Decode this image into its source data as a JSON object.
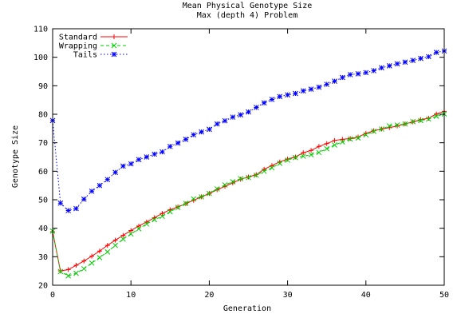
{
  "chart_data": {
    "type": "line",
    "title": "Mean Physical Genotype Size",
    "subtitle": "Max (depth 4) Problem",
    "xlabel": "Generation",
    "ylabel": "Genotype Size",
    "xlim": [
      0,
      50
    ],
    "ylim": [
      20,
      110
    ],
    "xticks": [
      "0",
      "10",
      "20",
      "30",
      "40",
      "50"
    ],
    "yticks": [
      "20",
      "30",
      "40",
      "50",
      "60",
      "70",
      "80",
      "90",
      "100",
      "110"
    ],
    "legend_position": "top-left",
    "x": [
      0,
      1,
      2,
      3,
      4,
      5,
      6,
      7,
      8,
      9,
      10,
      11,
      12,
      13,
      14,
      15,
      16,
      17,
      18,
      19,
      20,
      21,
      22,
      23,
      24,
      25,
      26,
      27,
      28,
      29,
      30,
      31,
      32,
      33,
      34,
      35,
      36,
      37,
      38,
      39,
      40,
      41,
      42,
      43,
      44,
      45,
      46,
      47,
      48,
      49,
      50
    ],
    "series": [
      {
        "name": "Standard",
        "color": "#ff0000",
        "marker": "plus",
        "dash": "solid",
        "values": [
          38.8,
          25.0,
          25.5,
          27.0,
          28.5,
          30.2,
          32.0,
          34.0,
          35.8,
          37.5,
          39.2,
          40.8,
          42.2,
          43.7,
          45.2,
          46.5,
          47.5,
          48.6,
          49.8,
          51.0,
          52.2,
          53.5,
          54.7,
          55.9,
          57.2,
          58.0,
          58.8,
          60.7,
          62.0,
          63.3,
          64.3,
          65.0,
          66.5,
          67.3,
          68.7,
          69.7,
          70.8,
          71.2,
          71.5,
          72.0,
          73.3,
          74.2,
          74.8,
          75.3,
          75.9,
          76.6,
          77.3,
          78.1,
          78.6,
          80.1,
          81.0
        ]
      },
      {
        "name": "Wrapping",
        "color": "#00cc00",
        "marker": "cross",
        "dash": "dashed",
        "values": [
          39.0,
          24.8,
          23.3,
          24.2,
          25.8,
          27.8,
          29.7,
          31.7,
          34.0,
          36.2,
          38.0,
          39.8,
          41.5,
          43.0,
          44.2,
          45.8,
          47.3,
          48.7,
          50.3,
          51.0,
          52.2,
          53.8,
          55.2,
          56.3,
          57.4,
          57.8,
          58.6,
          60.0,
          61.2,
          62.8,
          63.9,
          64.8,
          65.3,
          65.8,
          66.6,
          67.9,
          69.2,
          70.3,
          71.3,
          71.7,
          72.8,
          74.0,
          74.8,
          75.9,
          76.2,
          76.6,
          77.4,
          77.8,
          78.3,
          79.3,
          80.1
        ]
      },
      {
        "name": "Tails",
        "color": "#0000ff",
        "marker": "star",
        "dash": "dotted",
        "values": [
          77.8,
          48.8,
          46.2,
          46.9,
          50.2,
          53.0,
          55.0,
          57.1,
          59.6,
          61.8,
          62.6,
          64.1,
          65.0,
          66.0,
          66.8,
          68.7,
          69.9,
          71.2,
          72.8,
          73.8,
          74.7,
          76.6,
          77.7,
          79.0,
          79.8,
          80.8,
          82.4,
          84.0,
          85.2,
          86.2,
          86.8,
          87.3,
          88.2,
          88.8,
          89.5,
          90.5,
          91.6,
          92.9,
          93.9,
          94.2,
          94.6,
          95.3,
          96.3,
          97.0,
          97.7,
          98.3,
          98.9,
          99.6,
          100.2,
          101.7,
          102.2
        ]
      }
    ]
  }
}
